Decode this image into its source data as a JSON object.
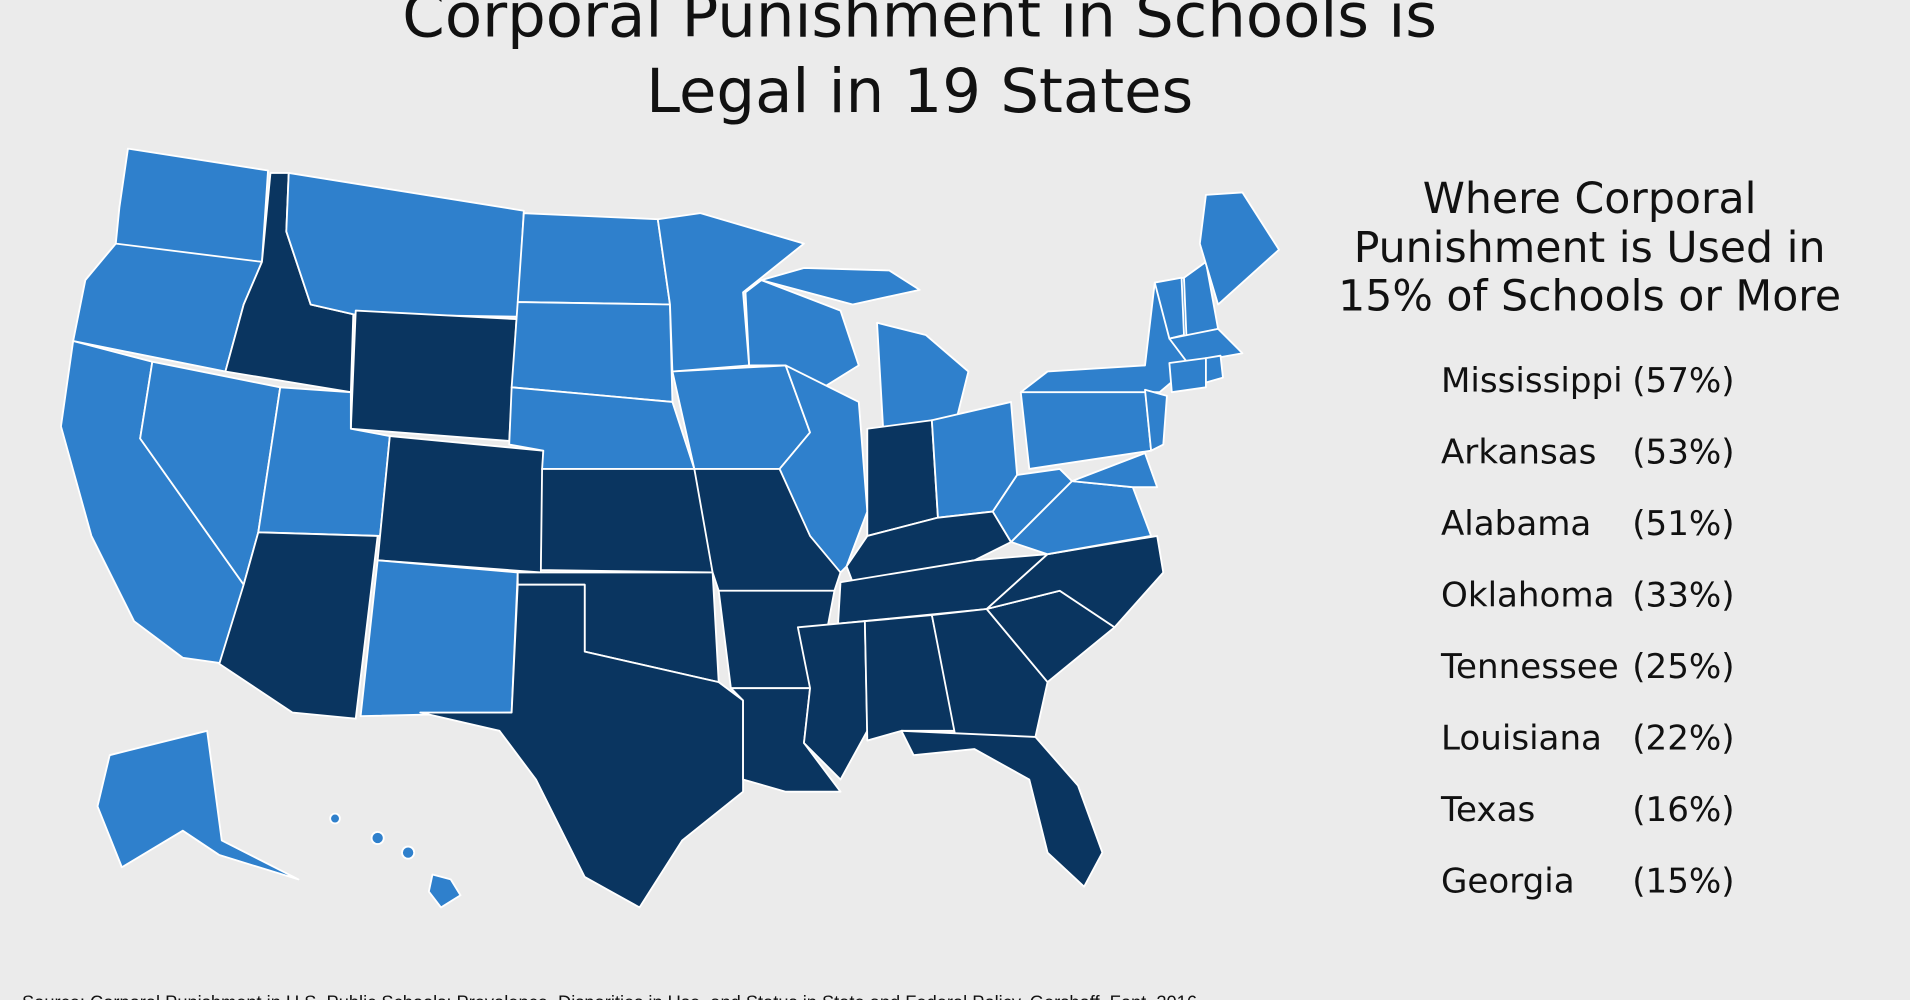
{
  "title": [
    "Corporal Punishment in Schools is",
    "Legal in 19 States"
  ],
  "panel": {
    "heading": [
      "Where Corporal",
      "Punishment is Used in",
      "15% of Schools or More"
    ],
    "items": [
      {
        "state": "Mississippi",
        "share": "(57%)"
      },
      {
        "state": "Arkansas",
        "share": "(53%)"
      },
      {
        "state": "Alabama",
        "share": "(51%)"
      },
      {
        "state": "Oklahoma",
        "share": "(33%)"
      },
      {
        "state": "Tennessee",
        "share": "(25%)"
      },
      {
        "state": "Louisiana",
        "share": "(22%)"
      },
      {
        "state": "Texas",
        "share": "(16%)"
      },
      {
        "state": "Georgia",
        "share": "(15%)"
      }
    ]
  },
  "source": "Source: Corporal Punishment in U.S. Public Schools: Prevalence, Disparities in Use, and Status in State and Federal Policy, Gershoff, Font, 2016"
}
